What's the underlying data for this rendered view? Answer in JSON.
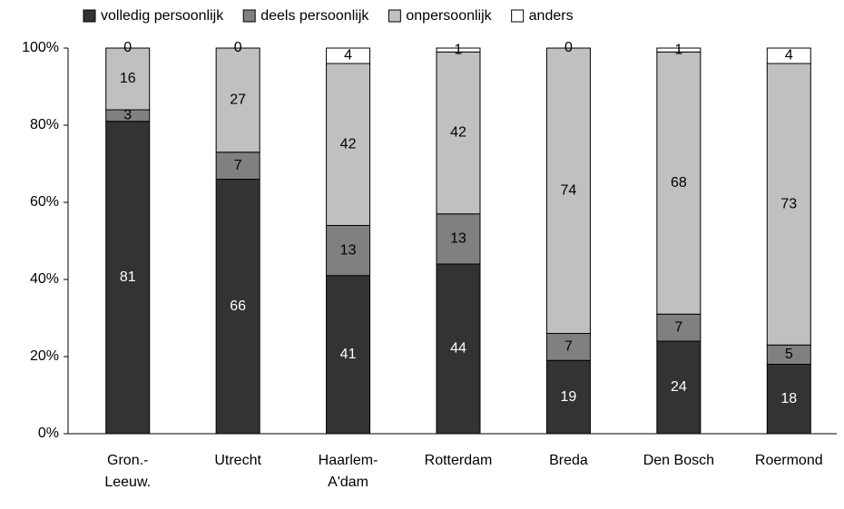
{
  "chart_data": {
    "type": "bar",
    "stacked": true,
    "categories": [
      "Gron.-\nLeeuw.",
      "Utrecht",
      "Haarlem-\nA'dam",
      "Rotterdam",
      "Breda",
      "Den Bosch",
      "Roermond"
    ],
    "series": [
      {
        "name": "volledig persoonlijk",
        "color": "#333333",
        "values": [
          81,
          66,
          41,
          44,
          19,
          24,
          18
        ]
      },
      {
        "name": "deels persoonlijk",
        "color": "#808080",
        "values": [
          3,
          7,
          13,
          13,
          7,
          7,
          5
        ]
      },
      {
        "name": "onpersoonlijk",
        "color": "#c0c0c0",
        "values": [
          16,
          27,
          42,
          42,
          74,
          68,
          73
        ]
      },
      {
        "name": "anders",
        "color": "#ffffff",
        "values": [
          0,
          0,
          4,
          1,
          0,
          1,
          4
        ]
      }
    ],
    "ylim": [
      0,
      100
    ],
    "yticks": [
      {
        "value": 0,
        "label": "0%"
      },
      {
        "value": 20,
        "label": "20%"
      },
      {
        "value": 40,
        "label": "40%"
      },
      {
        "value": 60,
        "label": "60%"
      },
      {
        "value": 80,
        "label": "80%"
      },
      {
        "value": 100,
        "label": "100%"
      }
    ],
    "grid": false
  }
}
